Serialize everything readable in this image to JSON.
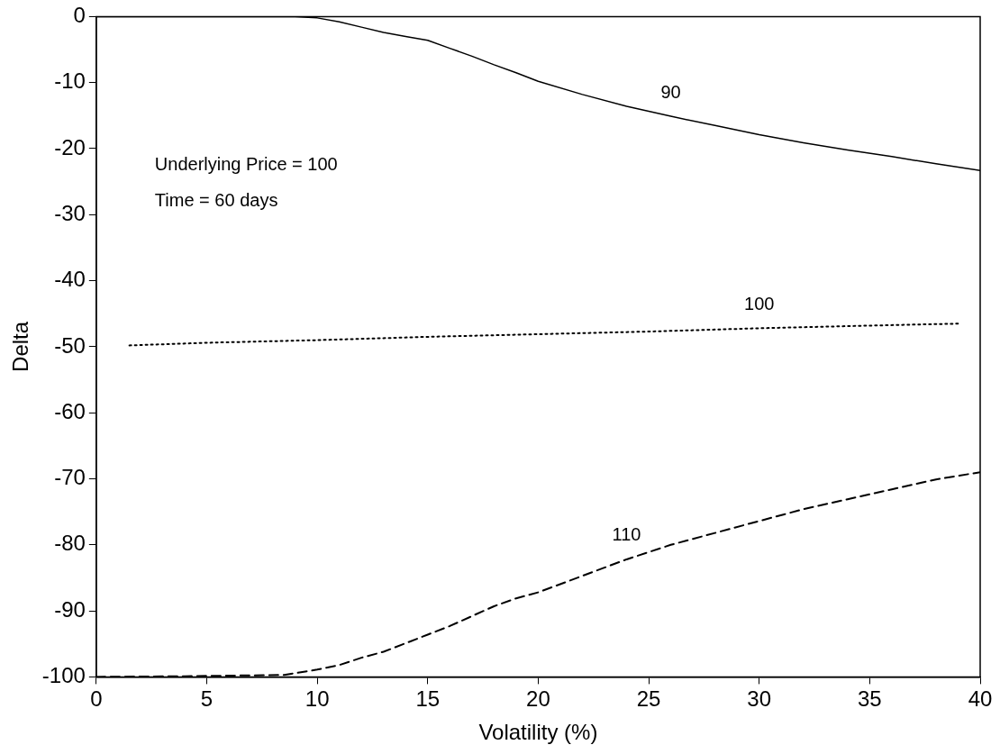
{
  "chart_data": {
    "type": "line",
    "xlabel": "Volatility (%)",
    "ylabel": "Delta",
    "xlim": [
      0,
      40
    ],
    "xticks": [
      0,
      5,
      10,
      15,
      20,
      25,
      30,
      35,
      40
    ],
    "ylim": [
      -100,
      0
    ],
    "yticks": [
      -100,
      -90,
      -80,
      -70,
      -60,
      -50,
      -40,
      -30,
      -20,
      -10,
      0
    ],
    "grid": false,
    "legend": false,
    "marker": "none",
    "annotations": [
      "Underlying Price = 100",
      "Time = 60 days"
    ],
    "series": [
      {
        "name": "90",
        "color": "#000000",
        "line_style": "solid",
        "x": [
          0,
          5,
          9,
          10,
          11,
          12,
          13,
          14,
          15,
          16,
          17,
          18,
          19,
          20,
          22,
          24,
          26,
          28,
          30,
          32,
          34,
          36,
          38,
          40
        ],
        "values": [
          0,
          0,
          0,
          -0.2,
          -0.8,
          -1.6,
          -2.4,
          -3.0,
          -3.6,
          -4.8,
          -6.0,
          -7.3,
          -8.5,
          -9.8,
          -11.8,
          -13.6,
          -15.1,
          -16.5,
          -17.9,
          -19.1,
          -20.2,
          -21.2,
          -22.3,
          -23.3
        ]
      },
      {
        "name": "100",
        "color": "#000000",
        "line_style": "dotted",
        "x": [
          1.5,
          5,
          10,
          15,
          20,
          25,
          30,
          35,
          39
        ],
        "values": [
          -49.8,
          -49.4,
          -49,
          -48.5,
          -48.1,
          -47.7,
          -47.2,
          -46.8,
          -46.5
        ]
      },
      {
        "name": "110",
        "color": "#000000",
        "line_style": "dashed",
        "x": [
          0,
          4,
          8.5,
          10,
          11,
          12,
          13,
          14,
          15,
          16,
          17,
          18,
          19,
          20,
          22,
          24,
          26,
          28,
          30,
          32,
          34,
          36,
          38,
          40
        ],
        "values": [
          -100,
          -99.9,
          -99.7,
          -98.9,
          -98.2,
          -97.1,
          -96.2,
          -94.9,
          -93.6,
          -92.3,
          -90.8,
          -89.3,
          -88.1,
          -87.2,
          -84.7,
          -82.2,
          -80.0,
          -78.2,
          -76.4,
          -74.6,
          -73.1,
          -71.6,
          -70.1,
          -69.0
        ]
      }
    ]
  }
}
